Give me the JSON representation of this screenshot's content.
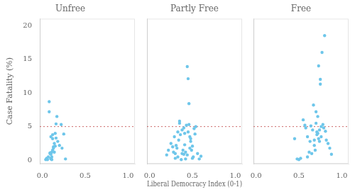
{
  "chart_data": [
    {
      "type": "scatter",
      "title": "Unfree",
      "ylabel": "Case Fatality (%)",
      "x": [
        0.04,
        0.05,
        0.06,
        0.07,
        0.08,
        0.08,
        0.09,
        0.09,
        0.1,
        0.1,
        0.1,
        0.1,
        0.11,
        0.11,
        0.11,
        0.12,
        0.12,
        0.12,
        0.13,
        0.13,
        0.14,
        0.14,
        0.15,
        0.15,
        0.16,
        0.16,
        0.17,
        0.18,
        0.2,
        0.22,
        0.23,
        0.25,
        0.27
      ],
      "values": [
        0.1,
        0.3,
        0.1,
        0.5,
        8.7,
        7.2,
        1.1,
        1.0,
        0.2,
        0.3,
        0.9,
        3.5,
        0.1,
        0.5,
        1.2,
        3.2,
        3.8,
        1.5,
        2.0,
        1.8,
        2.5,
        1.2,
        4.0,
        2.1,
        5.4,
        3.3,
        6.5,
        2.8,
        2.2,
        5.3,
        1.8,
        3.9,
        0.2
      ],
      "color": "#6EC6EA",
      "reference_line": {
        "y": 5.0,
        "color": "#CC6666",
        "line_style": "dotted"
      },
      "xlim": [
        -0.03,
        1.08
      ],
      "xticks": [
        {
          "value": 0.0,
          "label": "0.0"
        },
        0.5,
        {
          "value": 1.0,
          "label": "1.0"
        }
      ],
      "ylim": [
        -0.5,
        21
      ],
      "yticks": [
        0,
        5,
        10,
        15,
        20
      ],
      "grid": false
    },
    {
      "type": "scatter",
      "title": "Partly Free",
      "xlabel": "Liberal Democracy Index (0-1)",
      "x": [
        0.2,
        0.22,
        0.25,
        0.27,
        0.28,
        0.29,
        0.3,
        0.3,
        0.31,
        0.32,
        0.33,
        0.33,
        0.34,
        0.35,
        0.35,
        0.36,
        0.37,
        0.38,
        0.38,
        0.39,
        0.4,
        0.4,
        0.41,
        0.41,
        0.42,
        0.42,
        0.43,
        0.44,
        0.44,
        0.45,
        0.45,
        0.46,
        0.46,
        0.47,
        0.47,
        0.48,
        0.48,
        0.49,
        0.5,
        0.5,
        0.51,
        0.52,
        0.53,
        0.54,
        0.56,
        0.58,
        0.6
      ],
      "values": [
        0.8,
        1.5,
        2.5,
        2.0,
        1.2,
        3.5,
        1.0,
        0.3,
        2.2,
        1.8,
        0.5,
        4.2,
        3.0,
        5.5,
        5.8,
        3.8,
        0.1,
        1.0,
        4.5,
        1.5,
        4.8,
        0.9,
        4.0,
        2.3,
        0.2,
        1.2,
        5.2,
        13.9,
        0.8,
        12.1,
        4.2,
        8.4,
        5.3,
        3.5,
        1.8,
        3.2,
        2.8,
        1.5,
        0.3,
        2.1,
        0.5,
        4.7,
        3.9,
        5.0,
        1.0,
        0.2,
        0.6
      ],
      "color": "#6EC6EA",
      "reference_line": {
        "y": 5.0,
        "color": "#CC6666",
        "line_style": "dotted"
      },
      "xlim": [
        -0.03,
        1.08
      ],
      "xticks": [
        {
          "value": 0.0,
          "label": "0.0"
        },
        0.5,
        {
          "value": 1.0,
          "label": "1.0"
        }
      ],
      "ylim": [
        -0.5,
        21
      ],
      "yticks": [
        0,
        5,
        10,
        15,
        20
      ],
      "grid": false,
      "tick_labels": "x"
    },
    {
      "type": "scatter",
      "title": "Free",
      "x": [
        0.45,
        0.48,
        0.5,
        0.52,
        0.55,
        0.57,
        0.58,
        0.6,
        0.6,
        0.62,
        0.63,
        0.64,
        0.65,
        0.66,
        0.67,
        0.68,
        0.68,
        0.69,
        0.7,
        0.7,
        0.71,
        0.71,
        0.72,
        0.72,
        0.73,
        0.73,
        0.74,
        0.74,
        0.75,
        0.75,
        0.76,
        0.76,
        0.77,
        0.78,
        0.79,
        0.8,
        0.81,
        0.82,
        0.84,
        0.86,
        0.88
      ],
      "values": [
        3.2,
        0.2,
        0.1,
        0.3,
        6.0,
        5.2,
        4.8,
        3.5,
        0.5,
        1.2,
        2.8,
        5.1,
        1.0,
        4.5,
        8.2,
        3.0,
        2.2,
        1.5,
        7.2,
        5.5,
        4.2,
        3.8,
        6.5,
        4.0,
        14.0,
        3.2,
        4.5,
        2.8,
        12.0,
        11.3,
        5.0,
        3.5,
        16.0,
        5.3,
        4.8,
        18.5,
        4.3,
        3.0,
        2.5,
        1.8,
        0.9
      ],
      "color": "#6EC6EA",
      "reference_line": {
        "y": 5.0,
        "color": "#CC6666",
        "line_style": "dotted"
      },
      "xlim": [
        -0.03,
        1.08
      ],
      "xticks": [
        {
          "value": 0.0,
          "label": "0.0"
        },
        0.5,
        {
          "value": 1.0,
          "label": "1.0"
        }
      ],
      "ylim": [
        -0.5,
        21
      ],
      "yticks": [
        0,
        5,
        10,
        15,
        20
      ],
      "grid": false,
      "tick_labels": "x"
    }
  ]
}
